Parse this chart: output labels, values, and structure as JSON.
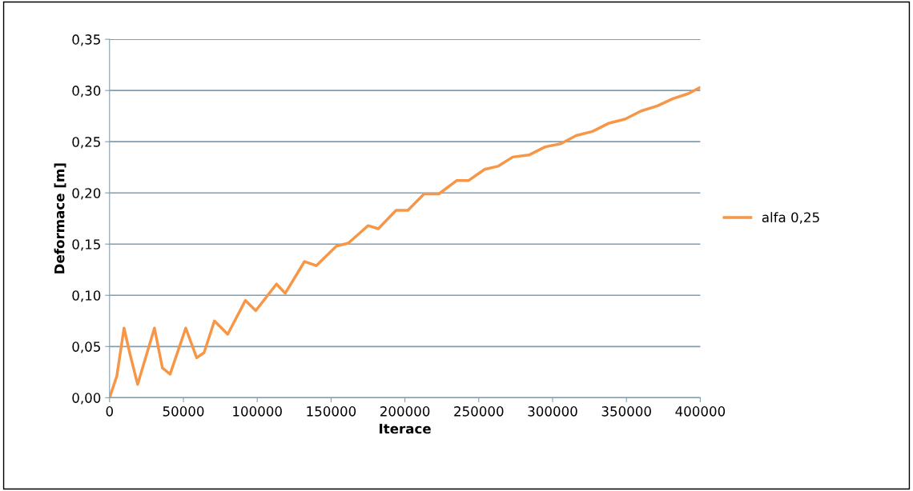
{
  "chart_data": {
    "type": "line",
    "xlabel": "Iterace",
    "ylabel": "Deformace [m]",
    "x": [
      0,
      4900,
      9800,
      13600,
      19000,
      30400,
      35800,
      41000,
      51600,
      59000,
      64000,
      71000,
      80000,
      92000,
      99000,
      113000,
      119000,
      132000,
      140000,
      153600,
      161700,
      175000,
      182000,
      194000,
      202000,
      213000,
      223000,
      235000,
      243000,
      254000,
      263000,
      273000,
      284000,
      295000,
      305500,
      316000,
      327000,
      338000,
      349000,
      360000,
      371000,
      381500,
      392000,
      400000
    ],
    "series": [
      {
        "name": "alfa 0,25",
        "color": "#f79646",
        "values": [
          0,
          0.021,
          0.068,
          0.044,
          0.013,
          0.068,
          0.029,
          0.023,
          0.068,
          0.039,
          0.044,
          0.075,
          0.062,
          0.095,
          0.085,
          0.111,
          0.102,
          0.133,
          0.129,
          0.148,
          0.151,
          0.168,
          0.165,
          0.183,
          0.183,
          0.199,
          0.199,
          0.212,
          0.212,
          0.223,
          0.226,
          0.235,
          0.237,
          0.245,
          0.248,
          0.256,
          0.26,
          0.268,
          0.272,
          0.28,
          0.285,
          0.292,
          0.297,
          0.303
        ]
      }
    ],
    "xlim": [
      0,
      400000
    ],
    "xticks": [
      0,
      50000,
      100000,
      150000,
      200000,
      250000,
      300000,
      350000,
      400000
    ],
    "ylim": [
      0,
      0.35
    ],
    "yticks": [
      {
        "value": 0,
        "label": "0,00"
      },
      {
        "value": 0.05,
        "label": "0,05"
      },
      {
        "value": 0.1,
        "label": "0,10"
      },
      {
        "value": 0.15,
        "label": "0,15"
      },
      {
        "value": 0.2,
        "label": "0,20"
      },
      {
        "value": 0.25,
        "label": "0,25"
      },
      {
        "value": 0.3,
        "label": "0,30"
      },
      {
        "value": 0.35,
        "label": "0,35"
      }
    ],
    "grid": "y",
    "legend": "right",
    "marker": "none",
    "line_style": "solid"
  }
}
